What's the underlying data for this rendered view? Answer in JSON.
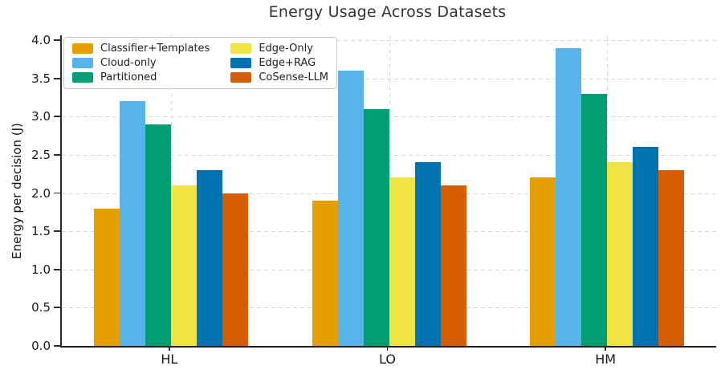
{
  "chart_data": {
    "type": "bar",
    "title": "Energy Usage Across Datasets",
    "xlabel": "",
    "ylabel": "Energy per decision (J)",
    "categories": [
      "HL",
      "LO",
      "HM"
    ],
    "series": [
      {
        "name": "Classifier+Templates",
        "color": "#E69F00",
        "values": [
          1.8,
          1.9,
          2.2
        ]
      },
      {
        "name": "Cloud-only",
        "color": "#56B4E9",
        "values": [
          3.2,
          3.6,
          3.9
        ]
      },
      {
        "name": "Partitioned",
        "color": "#009E73",
        "values": [
          2.9,
          3.1,
          3.3
        ]
      },
      {
        "name": "Edge-Only",
        "color": "#F0E442",
        "values": [
          2.1,
          2.2,
          2.4
        ]
      },
      {
        "name": "Edge+RAG",
        "color": "#0072B2",
        "values": [
          2.3,
          2.4,
          2.6
        ]
      },
      {
        "name": "CoSense-LLM",
        "color": "#D55E00",
        "values": [
          2.0,
          2.1,
          2.3
        ]
      }
    ],
    "ylim": [
      0.0,
      4.0
    ],
    "yticks": [
      0.0,
      0.5,
      1.0,
      1.5,
      2.0,
      2.5,
      3.0,
      3.5,
      4.0
    ],
    "ytick_labels": [
      "0.0",
      "0.5",
      "1.0",
      "1.5",
      "2.0",
      "2.5",
      "3.0",
      "3.5",
      "4.0"
    ],
    "grid": true,
    "grid_style": "dashed",
    "legend_position": "upper left",
    "legend_columns": 2
  }
}
